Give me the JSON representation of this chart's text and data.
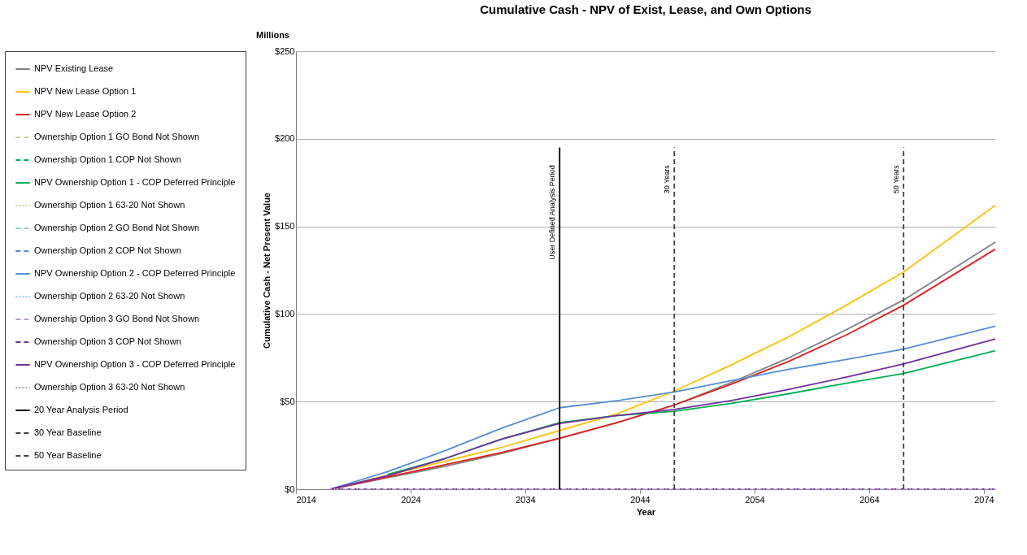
{
  "chart_data": {
    "type": "line",
    "title": "Cumulative Cash - NPV of Exist, Lease, and Own Options",
    "xlabel": "Year",
    "ylabel": "Cumulative Cash - Net Present Value",
    "x": [
      2017,
      2022,
      2027,
      2032,
      2037,
      2042,
      2047,
      2052,
      2057,
      2062,
      2067,
      2075
    ],
    "series": [
      {
        "name": "NPV Existing Lease",
        "color": "#808080",
        "line_style": "solid",
        "values": [
          0,
          6.5,
          13,
          20.5,
          29,
          38,
          48,
          61,
          75,
          91,
          108,
          141
        ]
      },
      {
        "name": "NPV New Lease Option 1",
        "color": "#ffc000",
        "line_style": "solid",
        "values": [
          0,
          8,
          16,
          24,
          33.5,
          43,
          56,
          71,
          87,
          105,
          124,
          162
        ]
      },
      {
        "name": "NPV New Lease Option 2",
        "color": "#e02020",
        "line_style": "solid",
        "values": [
          0,
          7,
          14,
          21,
          29,
          38,
          48,
          60,
          73,
          88,
          105,
          137
        ]
      },
      {
        "name": "Ownership Option 1 GO Bond Not Shown",
        "color": "#c4d79b",
        "line_style": "dashed",
        "values": [
          null,
          null,
          null,
          null,
          null,
          null,
          null,
          null,
          null,
          null,
          null,
          null
        ]
      },
      {
        "name": "Ownership Option 1 COP Not Shown",
        "color": "#00b050",
        "line_style": "dashed",
        "values": [
          null,
          null,
          null,
          null,
          null,
          null,
          null,
          null,
          null,
          null,
          null,
          null
        ]
      },
      {
        "name": "NPV Ownership Option 1 - COP Deferred Principle",
        "color": "#00b050",
        "line_style": "solid",
        "values": [
          null,
          8.4,
          17.5,
          28.7,
          38,
          42,
          44.5,
          49,
          54.5,
          60.5,
          66,
          79
        ]
      },
      {
        "name": "Ownership Option 1 63-20 Not Shown",
        "color": "#c4d79b",
        "line_style": "dotted",
        "values": [
          null,
          null,
          null,
          null,
          null,
          null,
          null,
          null,
          null,
          null,
          null,
          null
        ]
      },
      {
        "name": "Ownership Option 2 GO Bond Not Shown",
        "color": "#92cddc",
        "line_style": "dashed",
        "values": [
          null,
          null,
          null,
          null,
          null,
          null,
          null,
          null,
          null,
          null,
          null,
          null
        ]
      },
      {
        "name": "Ownership Option 2 COP Not Shown",
        "color": "#558ed5",
        "line_style": "dashed",
        "values": [
          null,
          null,
          null,
          null,
          null,
          null,
          null,
          null,
          null,
          null,
          null,
          null
        ]
      },
      {
        "name": "NPV Ownership Option 2 - COP Deferred Principle",
        "color": "#558ed5",
        "line_style": "solid",
        "values": [
          0,
          10,
          22,
          35,
          46.5,
          50.5,
          55.5,
          62,
          68.5,
          74,
          80,
          93
        ]
      },
      {
        "name": "Ownership Option 2 63-20 Not Shown",
        "color": "#92cddc",
        "line_style": "dotted",
        "values": [
          null,
          null,
          null,
          null,
          null,
          null,
          null,
          null,
          null,
          null,
          null,
          null
        ]
      },
      {
        "name": "Ownership Option 3 GO Bond Not Shown",
        "color": "#b3a2c7",
        "line_style": "dashed",
        "values": [
          null,
          null,
          null,
          null,
          null,
          null,
          null,
          null,
          null,
          null,
          null,
          null
        ]
      },
      {
        "name": "Ownership Option 3 COP Not Shown",
        "color": "#7030a0",
        "line_style": "dashed",
        "x": [
          2017,
          2075
        ],
        "values": [
          0,
          0
        ]
      },
      {
        "name": "NPV Ownership Option 3 - COP Deferred Principle",
        "color": "#7030a0",
        "line_style": "solid",
        "values": [
          0,
          7.7,
          17.5,
          28.7,
          37.5,
          42,
          45.5,
          50.6,
          57,
          64,
          71.5,
          85.7
        ]
      },
      {
        "name": "Ownership Option 3 63-20 Not Shown",
        "color": "#b3a2c7",
        "line_style": "dotted",
        "x": [
          2017,
          2075
        ],
        "values": [
          0,
          0
        ]
      },
      {
        "name": "20 Year Analysis Period",
        "color": "#000000",
        "line_style": "solid",
        "x": [
          2037,
          2037
        ],
        "values": [
          0,
          195
        ]
      },
      {
        "name": "30 Year Baseline",
        "color": "#404040",
        "line_style": "dashed",
        "x": [
          2047,
          2047
        ],
        "values": [
          0,
          195
        ]
      },
      {
        "name": "50 Year Baseline",
        "color": "#404040",
        "line_style": "dashed",
        "x": [
          2067,
          2067
        ],
        "values": [
          0,
          195
        ]
      }
    ],
    "xlim": [
      2014,
      2075
    ],
    "xticks": [
      2014,
      2024,
      2034,
      2044,
      2054,
      2064,
      2074
    ],
    "ylim": [
      0,
      250
    ],
    "yticks": [
      {
        "value": 0,
        "label": "$0"
      },
      {
        "value": 50,
        "label": "$50"
      },
      {
        "value": 100,
        "label": "$100"
      },
      {
        "value": 150,
        "label": "$150"
      },
      {
        "value": 200,
        "label": "$200"
      },
      {
        "value": 250,
        "label": "$250"
      }
    ],
    "grid": "y",
    "legend": "left",
    "marker": "none",
    "annotations": [
      "Millions",
      {
        "text": "User Defined Analysis Period",
        "x": 2037,
        "y": 185
      },
      {
        "text": "30 Years",
        "x": 2047,
        "y": 185
      },
      {
        "text": "50 Years",
        "x": 2067,
        "y": 185
      }
    ]
  }
}
